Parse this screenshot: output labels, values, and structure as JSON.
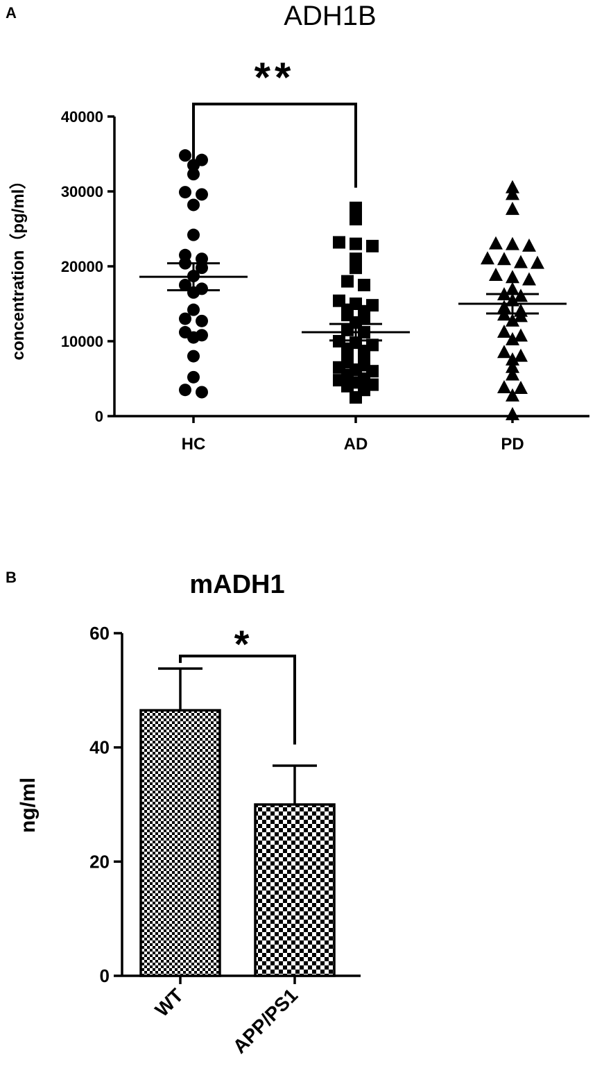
{
  "chart_data": [
    {
      "panel": "A",
      "type": "scatter",
      "title": "ADH1B",
      "ylabel": "concentration（pg/ml）",
      "xlabel": "",
      "ylim": [
        0,
        40000
      ],
      "yticks": [
        0,
        10000,
        20000,
        30000,
        40000
      ],
      "ytick_labels": [
        "0",
        "10000",
        "20000",
        "30000",
        "40000"
      ],
      "categories": [
        "HC",
        "AD",
        "PD"
      ],
      "grid": false,
      "series": [
        {
          "group": "HC",
          "marker": "circle",
          "mean": 18600,
          "sem": 1800,
          "values": [
            34200,
            32300,
            33500,
            34800,
            29600,
            29900,
            28200,
            24200,
            21000,
            20400,
            21500,
            19800,
            18700,
            17500,
            17000,
            16500,
            14200,
            13000,
            12700,
            11200,
            10800,
            10500,
            8000,
            5200,
            3200,
            3500
          ]
        },
        {
          "group": "AD",
          "marker": "square",
          "mean": 11200,
          "sem": 1100,
          "values": [
            27800,
            26300,
            23000,
            22700,
            23200,
            21000,
            19800,
            18000,
            17500,
            15400,
            15000,
            14800,
            14200,
            14000,
            13000,
            13500,
            12500,
            11500,
            11200,
            10000,
            9500,
            9800,
            9000,
            8700,
            8000,
            7500,
            7200,
            6800,
            6500,
            6200,
            6000,
            5500,
            5000,
            4800,
            4500,
            4200,
            4000,
            3500,
            2500
          ]
        },
        {
          "group": "PD",
          "marker": "triangle",
          "mean": 15000,
          "sem": 1300,
          "values": [
            30500,
            29600,
            27600,
            23000,
            22700,
            22900,
            20900,
            21000,
            20400,
            20500,
            18800,
            18500,
            18200,
            16900,
            16200,
            16000,
            15400,
            14500,
            14000,
            13500,
            13300,
            12700,
            11200,
            10700,
            10200,
            8500,
            8000,
            7500,
            6500,
            5500,
            3800,
            3700,
            2700,
            200
          ]
        }
      ],
      "annotations": [
        {
          "text": "**",
          "between": [
            "HC",
            "AD"
          ]
        }
      ]
    },
    {
      "panel": "B",
      "type": "bar",
      "title": "mADH1",
      "ylabel": "ng/ml",
      "xlabel": "",
      "ylim": [
        0,
        60
      ],
      "yticks": [
        0,
        20,
        40,
        60
      ],
      "ytick_labels": [
        "0",
        "20",
        "40",
        "60"
      ],
      "categories": [
        "WT",
        "APP/PS1"
      ],
      "values": [
        46.5,
        30.0
      ],
      "errors": [
        7.3,
        6.8
      ],
      "grid": false,
      "annotations": [
        {
          "text": "*",
          "between": [
            "WT",
            "APP/PS1"
          ]
        }
      ]
    }
  ]
}
